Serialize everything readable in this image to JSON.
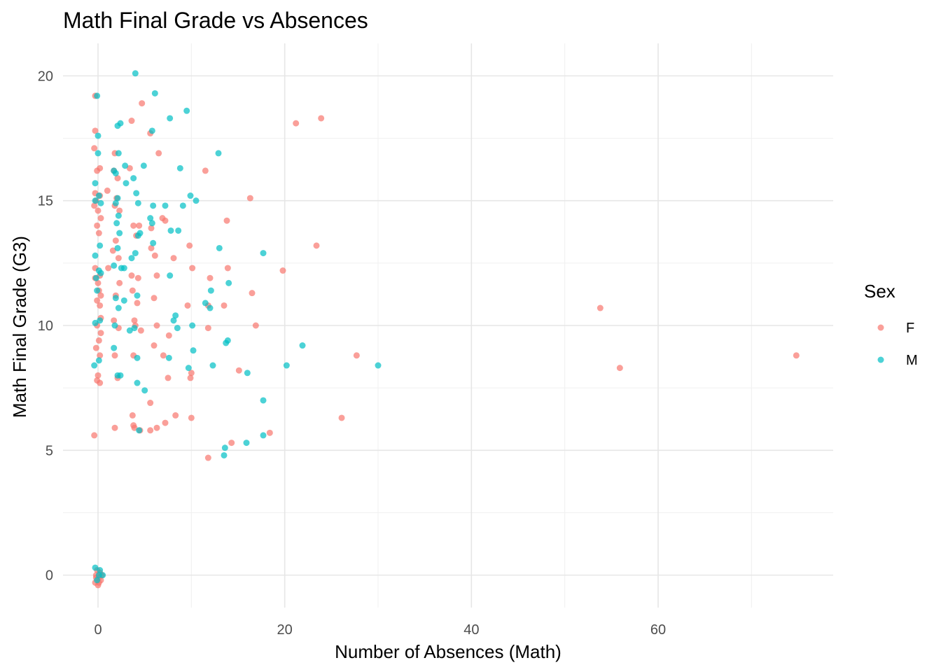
{
  "chart_data": {
    "type": "scatter",
    "title": "Math Final Grade vs Absences",
    "xlabel": "Number of Absences (Math)",
    "ylabel": "Math Final Grade (G3)",
    "xlim": [
      -3.75,
      78.75
    ],
    "ylim": [
      -1.3,
      21.3
    ],
    "x_ticks": [
      0,
      20,
      40,
      60
    ],
    "y_ticks": [
      0,
      5,
      10,
      15,
      20
    ],
    "grid": true,
    "point_opacity": 0.7,
    "legend": {
      "title": "Sex",
      "position": "right"
    },
    "series": [
      {
        "name": "F",
        "color": "#F8766D",
        "points": [
          [
            -0.3,
            19.2
          ],
          [
            -0.3,
            17.8
          ],
          [
            -0.4,
            17.1
          ],
          [
            0.2,
            16.3
          ],
          [
            -0.1,
            16.2
          ],
          [
            -0.3,
            15.3
          ],
          [
            0.2,
            15.2
          ],
          [
            -0.2,
            15.0
          ],
          [
            -0.4,
            14.8
          ],
          [
            0.0,
            14.6
          ],
          [
            0.3,
            14.3
          ],
          [
            -0.1,
            14.0
          ],
          [
            0.1,
            13.7
          ],
          [
            -0.3,
            12.3
          ],
          [
            0.2,
            12.0
          ],
          [
            -0.3,
            11.9
          ],
          [
            0.0,
            11.7
          ],
          [
            0.1,
            11.4
          ],
          [
            0.3,
            11.2
          ],
          [
            -0.1,
            11.0
          ],
          [
            0.2,
            10.8
          ],
          [
            0.3,
            10.3
          ],
          [
            -0.1,
            10.0
          ],
          [
            0.3,
            9.7
          ],
          [
            0.1,
            9.4
          ],
          [
            -0.2,
            9.1
          ],
          [
            0.2,
            8.8
          ],
          [
            0.0,
            8.0
          ],
          [
            -0.1,
            7.8
          ],
          [
            0.2,
            7.7
          ],
          [
            -0.4,
            5.6
          ],
          [
            1.0,
            15.4
          ],
          [
            1.1,
            12.3
          ],
          [
            1.8,
            16.9
          ],
          [
            1.7,
            16.2
          ],
          [
            2.1,
            15.9
          ],
          [
            2.0,
            15.1
          ],
          [
            1.8,
            14.8
          ],
          [
            2.3,
            14.6
          ],
          [
            1.9,
            13.4
          ],
          [
            1.6,
            13.0
          ],
          [
            2.2,
            12.7
          ],
          [
            2.3,
            11.7
          ],
          [
            1.9,
            11.2
          ],
          [
            1.7,
            10.2
          ],
          [
            2.2,
            9.9
          ],
          [
            1.8,
            8.8
          ],
          [
            2.1,
            7.9
          ],
          [
            1.8,
            5.9
          ],
          [
            3.6,
            18.2
          ],
          [
            4.7,
            18.9
          ],
          [
            3.4,
            16.3
          ],
          [
            3.8,
            14.0
          ],
          [
            4.4,
            14.0
          ],
          [
            4.1,
            13.6
          ],
          [
            3.6,
            12.0
          ],
          [
            4.3,
            11.9
          ],
          [
            3.7,
            11.4
          ],
          [
            4.2,
            10.9
          ],
          [
            3.9,
            10.2
          ],
          [
            4.0,
            10.0
          ],
          [
            4.6,
            9.8
          ],
          [
            3.8,
            8.8
          ],
          [
            3.7,
            6.4
          ],
          [
            3.8,
            6.0
          ],
          [
            3.9,
            5.9
          ],
          [
            4.5,
            5.8
          ],
          [
            5.6,
            17.7
          ],
          [
            6.5,
            16.9
          ],
          [
            5.7,
            13.9
          ],
          [
            5.7,
            13.1
          ],
          [
            6.1,
            12.8
          ],
          [
            6.3,
            12.0
          ],
          [
            6.0,
            11.1
          ],
          [
            6.3,
            10.0
          ],
          [
            6.0,
            9.2
          ],
          [
            5.6,
            6.9
          ],
          [
            5.6,
            5.8
          ],
          [
            6.3,
            5.9
          ],
          [
            7.2,
            14.2
          ],
          [
            6.9,
            14.3
          ],
          [
            8.1,
            12.7
          ],
          [
            7.6,
            9.6
          ],
          [
            7.0,
            8.8
          ],
          [
            7.5,
            7.9
          ],
          [
            7.2,
            6.1
          ],
          [
            8.3,
            6.4
          ],
          [
            9.8,
            13.2
          ],
          [
            9.6,
            10.8
          ],
          [
            10.1,
            12.3
          ],
          [
            10.0,
            8.1
          ],
          [
            9.9,
            7.9
          ],
          [
            10.0,
            6.3
          ],
          [
            11.5,
            16.2
          ],
          [
            12.0,
            11.9
          ],
          [
            11.8,
            10.8
          ],
          [
            11.8,
            9.9
          ],
          [
            11.8,
            4.7
          ],
          [
            13.8,
            14.2
          ],
          [
            13.9,
            12.3
          ],
          [
            13.5,
            10.8
          ],
          [
            14.3,
            5.3
          ],
          [
            15.1,
            8.2
          ],
          [
            16.3,
            15.1
          ],
          [
            16.5,
            11.3
          ],
          [
            16.9,
            10.0
          ],
          [
            18.4,
            5.7
          ],
          [
            19.8,
            12.2
          ],
          [
            21.2,
            18.1
          ],
          [
            23.4,
            13.2
          ],
          [
            23.9,
            18.3
          ],
          [
            26.1,
            6.3
          ],
          [
            27.7,
            8.8
          ],
          [
            53.8,
            10.7
          ],
          [
            55.9,
            8.3
          ],
          [
            74.8,
            8.8
          ],
          [
            -0.2,
            0.0
          ],
          [
            0.1,
            -0.1
          ],
          [
            0.3,
            -0.2
          ],
          [
            -0.3,
            -0.3
          ],
          [
            0.0,
            -0.4
          ],
          [
            0.2,
            0.1
          ],
          [
            -0.1,
            0.2
          ],
          [
            0.4,
            0.0
          ],
          [
            0.1,
            -0.3
          ],
          [
            -0.2,
            -0.1
          ]
        ]
      },
      {
        "name": "M",
        "color": "#00BFC4",
        "points": [
          [
            -0.1,
            19.2
          ],
          [
            0.0,
            17.6
          ],
          [
            0.0,
            16.9
          ],
          [
            -0.3,
            15.7
          ],
          [
            0.1,
            15.2
          ],
          [
            -0.3,
            15.0
          ],
          [
            0.3,
            14.9
          ],
          [
            0.2,
            13.2
          ],
          [
            -0.3,
            12.8
          ],
          [
            0.1,
            12.2
          ],
          [
            0.3,
            12.1
          ],
          [
            -0.2,
            11.9
          ],
          [
            -0.1,
            11.4
          ],
          [
            0.2,
            10.2
          ],
          [
            -0.3,
            10.1
          ],
          [
            0.1,
            8.6
          ],
          [
            -0.4,
            8.4
          ],
          [
            1.7,
            16.2
          ],
          [
            2.1,
            18.0
          ],
          [
            2.4,
            18.1
          ],
          [
            2.2,
            16.9
          ],
          [
            1.9,
            16.1
          ],
          [
            2.1,
            15.1
          ],
          [
            1.9,
            14.9
          ],
          [
            2.2,
            14.4
          ],
          [
            2.0,
            14.1
          ],
          [
            2.3,
            13.7
          ],
          [
            2.1,
            13.1
          ],
          [
            2.5,
            12.3
          ],
          [
            1.7,
            12.4
          ],
          [
            1.9,
            11.1
          ],
          [
            2.2,
            10.7
          ],
          [
            1.8,
            10.0
          ],
          [
            1.7,
            9.1
          ],
          [
            2.1,
            8.0
          ],
          [
            2.4,
            8.0
          ],
          [
            2.9,
            16.4
          ],
          [
            3.0,
            15.7
          ],
          [
            2.8,
            12.3
          ],
          [
            3.6,
            12.7
          ],
          [
            2.8,
            11.0
          ],
          [
            3.4,
            9.8
          ],
          [
            4.0,
            20.1
          ],
          [
            3.8,
            15.9
          ],
          [
            4.1,
            15.3
          ],
          [
            4.3,
            14.9
          ],
          [
            4.5,
            13.7
          ],
          [
            4.3,
            13.6
          ],
          [
            4.0,
            12.9
          ],
          [
            4.2,
            11.2
          ],
          [
            3.9,
            9.9
          ],
          [
            4.2,
            8.7
          ],
          [
            4.2,
            7.7
          ],
          [
            4.4,
            5.8
          ],
          [
            5.0,
            7.4
          ],
          [
            4.9,
            16.4
          ],
          [
            5.6,
            14.3
          ],
          [
            6.1,
            19.3
          ],
          [
            5.8,
            17.8
          ],
          [
            5.9,
            14.8
          ],
          [
            5.9,
            13.3
          ],
          [
            5.8,
            14.1
          ],
          [
            7.2,
            14.8
          ],
          [
            7.7,
            18.3
          ],
          [
            7.8,
            13.8
          ],
          [
            7.7,
            12.0
          ],
          [
            8.3,
            10.4
          ],
          [
            8.1,
            10.2
          ],
          [
            8.5,
            9.9
          ],
          [
            7.6,
            8.7
          ],
          [
            8.8,
            16.3
          ],
          [
            9.1,
            14.8
          ],
          [
            8.6,
            13.8
          ],
          [
            9.5,
            18.6
          ],
          [
            9.9,
            15.2
          ],
          [
            10.5,
            15.0
          ],
          [
            9.7,
            8.3
          ],
          [
            10.1,
            10.0
          ],
          [
            10.2,
            9.0
          ],
          [
            11.5,
            10.9
          ],
          [
            12.0,
            10.7
          ],
          [
            12.1,
            11.4
          ],
          [
            12.3,
            8.4
          ],
          [
            12.9,
            16.9
          ],
          [
            13.0,
            13.1
          ],
          [
            13.7,
            9.3
          ],
          [
            13.9,
            9.4
          ],
          [
            13.6,
            5.1
          ],
          [
            13.5,
            4.8
          ],
          [
            14.0,
            11.7
          ],
          [
            16.0,
            8.1
          ],
          [
            15.9,
            5.3
          ],
          [
            17.7,
            12.9
          ],
          [
            17.7,
            7.0
          ],
          [
            17.7,
            5.6
          ],
          [
            20.2,
            8.4
          ],
          [
            21.9,
            9.2
          ],
          [
            30.0,
            8.4
          ],
          [
            -0.3,
            0.3
          ],
          [
            0.1,
            0.0
          ],
          [
            0.5,
            0.0
          ],
          [
            -0.1,
            -0.2
          ],
          [
            0.2,
            0.2
          ]
        ]
      }
    ]
  }
}
